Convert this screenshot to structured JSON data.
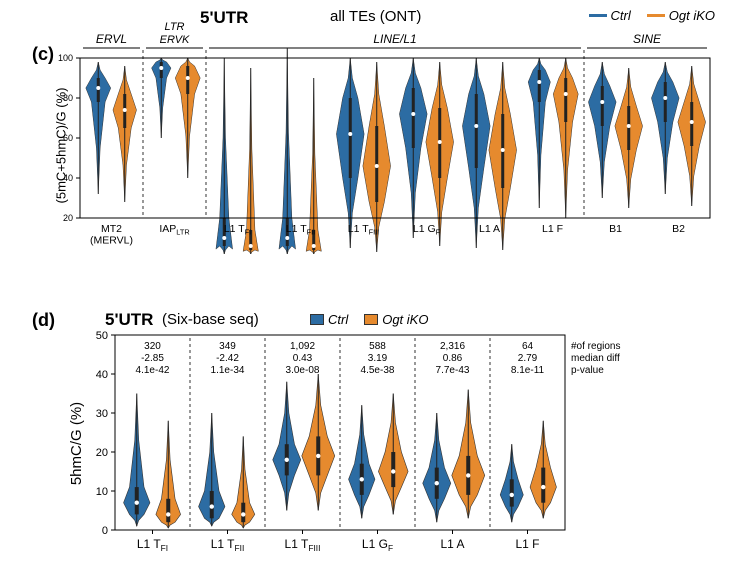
{
  "panel_c": {
    "label": "(c)",
    "title_main": "all TEs (ONT)",
    "five_utr_label": "5'UTR",
    "legend": [
      {
        "label": "Ctrl",
        "color": "#2c6ca3"
      },
      {
        "label": "Ogt iKO",
        "color": "#e68a2e"
      }
    ],
    "y_axis": {
      "title": "(5mC+5hmC)/G (%)",
      "min": 20,
      "max": 100,
      "ticks": [
        20,
        40,
        60,
        80,
        100
      ]
    },
    "group_headers": [
      {
        "label": "ERVL",
        "span": [
          0,
          0
        ]
      },
      {
        "label": "LTR\nERVK",
        "span": [
          1,
          1
        ],
        "two_line": true
      },
      {
        "label": "LINE/L1",
        "span": [
          2,
          7
        ]
      },
      {
        "label": "SINE",
        "span": [
          8,
          9
        ]
      }
    ],
    "x_labels": [
      "MT2\n(MERVL)",
      "IAP_LTR",
      "L1 T_FI",
      "L1 T_FII",
      "L1 T_FIII",
      "L1 G_F",
      "L1 A",
      "L1 F",
      "B1",
      "B2"
    ],
    "violins": {
      "colors": {
        "ctrl": "#2c6ca3",
        "iko": "#e68a2e"
      },
      "series": [
        {
          "ctrl": {
            "med": 85,
            "q1": 78,
            "q3": 90,
            "lo": 32,
            "hi": 98,
            "w": 0.9
          },
          "iko": {
            "med": 74,
            "q1": 65,
            "q3": 82,
            "lo": 28,
            "hi": 96,
            "w": 0.85
          }
        },
        {
          "ctrl": {
            "med": 95,
            "q1": 90,
            "q3": 98,
            "lo": 60,
            "hi": 100,
            "w": 0.7
          },
          "iko": {
            "med": 90,
            "q1": 82,
            "q3": 96,
            "lo": 40,
            "hi": 100,
            "w": 0.9
          }
        },
        {
          "ctrl": {
            "med": 10,
            "q1": 6,
            "q3": 20,
            "lo": 2,
            "hi": 100,
            "w": 0.6,
            "bottom": true
          },
          "iko": {
            "med": 6,
            "q1": 4,
            "q3": 14,
            "lo": 2,
            "hi": 95,
            "w": 0.55,
            "bottom": true
          }
        },
        {
          "ctrl": {
            "med": 10,
            "q1": 6,
            "q3": 20,
            "lo": 2,
            "hi": 105,
            "w": 0.6,
            "bottom": true
          },
          "iko": {
            "med": 6,
            "q1": 4,
            "q3": 14,
            "lo": 2,
            "hi": 90,
            "w": 0.55,
            "bottom": true
          }
        },
        {
          "ctrl": {
            "med": 62,
            "q1": 40,
            "q3": 80,
            "lo": 5,
            "hi": 100,
            "w": 1.0
          },
          "iko": {
            "med": 46,
            "q1": 28,
            "q3": 66,
            "lo": 3,
            "hi": 98,
            "w": 1.0
          }
        },
        {
          "ctrl": {
            "med": 72,
            "q1": 55,
            "q3": 85,
            "lo": 10,
            "hi": 100,
            "w": 1.0
          },
          "iko": {
            "med": 58,
            "q1": 40,
            "q3": 75,
            "lo": 6,
            "hi": 98,
            "w": 1.0
          }
        },
        {
          "ctrl": {
            "med": 66,
            "q1": 45,
            "q3": 82,
            "lo": 5,
            "hi": 100,
            "w": 1.0
          },
          "iko": {
            "med": 54,
            "q1": 35,
            "q3": 72,
            "lo": 4,
            "hi": 98,
            "w": 1.0
          }
        },
        {
          "ctrl": {
            "med": 88,
            "q1": 78,
            "q3": 94,
            "lo": 25,
            "hi": 100,
            "w": 0.8
          },
          "iko": {
            "med": 82,
            "q1": 68,
            "q3": 90,
            "lo": 20,
            "hi": 100,
            "w": 0.9
          }
        },
        {
          "ctrl": {
            "med": 78,
            "q1": 66,
            "q3": 86,
            "lo": 30,
            "hi": 98,
            "w": 1.0
          },
          "iko": {
            "med": 66,
            "q1": 54,
            "q3": 76,
            "lo": 25,
            "hi": 95,
            "w": 1.0
          }
        },
        {
          "ctrl": {
            "med": 80,
            "q1": 68,
            "q3": 88,
            "lo": 32,
            "hi": 98,
            "w": 1.0
          },
          "iko": {
            "med": 68,
            "q1": 56,
            "q3": 78,
            "lo": 26,
            "hi": 96,
            "w": 1.0
          }
        }
      ],
      "dividers_after": [
        0,
        1,
        7
      ]
    },
    "plot": {
      "background": "#ffffff",
      "axis_color": "#000000",
      "tick_fontsize": 10,
      "label_fontsize": 11,
      "label_fontweight": "normal"
    }
  },
  "panel_d": {
    "label": "(d)",
    "title_main": "5'UTR",
    "title_sub": "(Six-base seq)",
    "legend": [
      {
        "label": "Ctrl",
        "color": "#2c6ca3"
      },
      {
        "label": "Ogt iKO",
        "color": "#e68a2e"
      }
    ],
    "y_axis": {
      "title": "5hmC/G (%)",
      "min": 0,
      "max": 50,
      "ticks": [
        0,
        10,
        20,
        30,
        40,
        50
      ]
    },
    "stats_header_labels": [
      "#of regions",
      "median diff",
      "p-value"
    ],
    "x_labels": [
      "L1 T_FI",
      "L1 T_FII",
      "L1 T_FIII",
      "L1 G_F",
      "L1 A",
      "L1 F"
    ],
    "stats": [
      {
        "n": "320",
        "md": "-2.85",
        "p": "4.1e-42"
      },
      {
        "n": "349",
        "md": "-2.42",
        "p": "1.1e-34"
      },
      {
        "n": "1,092",
        "md": "0.43",
        "p": "3.0e-08"
      },
      {
        "n": "588",
        "md": "3.19",
        "p": "4.5e-38"
      },
      {
        "n": "2,316",
        "md": "0.86",
        "p": "7.7e-43"
      },
      {
        "n": "64",
        "md": "2.79",
        "p": "8.1e-11"
      }
    ],
    "violins": {
      "colors": {
        "ctrl": "#2c6ca3",
        "iko": "#e68a2e"
      },
      "series": [
        {
          "ctrl": {
            "med": 7,
            "q1": 4,
            "q3": 11,
            "lo": 1,
            "hi": 35,
            "w": 0.8
          },
          "iko": {
            "med": 4,
            "q1": 2,
            "q3": 8,
            "lo": 0.5,
            "hi": 28,
            "w": 0.75
          }
        },
        {
          "ctrl": {
            "med": 6,
            "q1": 3,
            "q3": 10,
            "lo": 1,
            "hi": 30,
            "w": 0.8
          },
          "iko": {
            "med": 4,
            "q1": 2,
            "q3": 7,
            "lo": 0.5,
            "hi": 24,
            "w": 0.7
          }
        },
        {
          "ctrl": {
            "med": 18,
            "q1": 14,
            "q3": 22,
            "lo": 5,
            "hi": 38,
            "w": 0.85
          },
          "iko": {
            "med": 19,
            "q1": 14,
            "q3": 24,
            "lo": 5,
            "hi": 40,
            "w": 1.0
          }
        },
        {
          "ctrl": {
            "med": 13,
            "q1": 9,
            "q3": 17,
            "lo": 3,
            "hi": 32,
            "w": 0.8
          },
          "iko": {
            "med": 15,
            "q1": 11,
            "q3": 20,
            "lo": 4,
            "hi": 35,
            "w": 0.9
          }
        },
        {
          "ctrl": {
            "med": 12,
            "q1": 8,
            "q3": 16,
            "lo": 2,
            "hi": 30,
            "w": 0.85
          },
          "iko": {
            "med": 14,
            "q1": 9,
            "q3": 19,
            "lo": 3,
            "hi": 36,
            "w": 1.0
          }
        },
        {
          "ctrl": {
            "med": 9,
            "q1": 6,
            "q3": 13,
            "lo": 2,
            "hi": 22,
            "w": 0.7
          },
          "iko": {
            "med": 11,
            "q1": 7,
            "q3": 16,
            "lo": 3,
            "hi": 28,
            "w": 0.8
          }
        }
      ],
      "dividers_after": [
        0,
        1,
        2,
        3,
        4
      ]
    },
    "plot": {
      "background": "#ffffff",
      "axis_color": "#000000",
      "tick_fontsize": 11,
      "label_fontsize": 12,
      "stats_fontsize": 10
    }
  }
}
